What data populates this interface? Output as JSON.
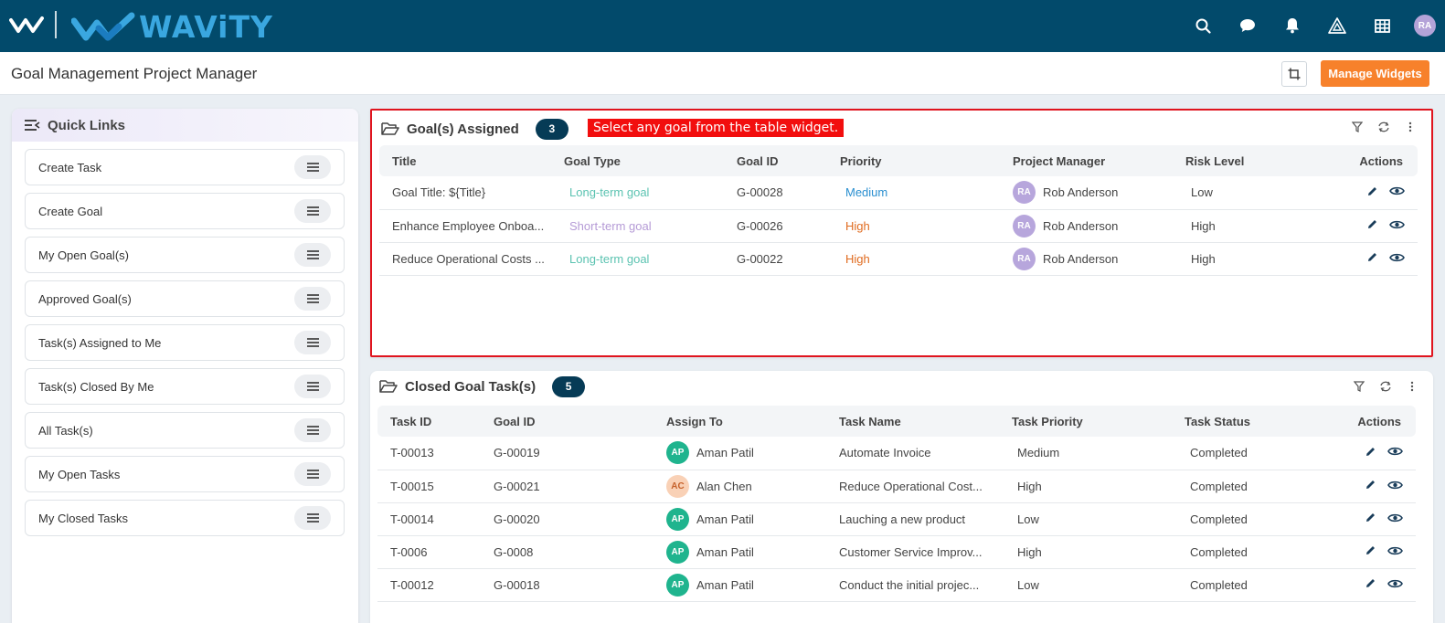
{
  "brand": {
    "name": "WAViTY"
  },
  "page": {
    "title": "Goal Management Project Manager",
    "manage_widgets": "Manage Widgets"
  },
  "user": {
    "initials": "RA"
  },
  "quick_links": {
    "title": "Quick Links",
    "items": [
      "Create Task",
      "Create Goal",
      "My Open Goal(s)",
      "Approved Goal(s)",
      "Task(s) Assigned to Me",
      "Task(s) Closed By Me",
      "All Task(s)",
      "My Open Tasks",
      "My Closed Tasks"
    ]
  },
  "goals_widget": {
    "title": "Goal(s) Assigned",
    "count": "3",
    "annotation": "Select any goal from the table widget.",
    "columns": [
      "Title",
      "Goal Type",
      "Goal ID",
      "Priority",
      "Project Manager",
      "Risk Level",
      "Actions"
    ],
    "rows": [
      {
        "title": "Goal Title: ${Title}",
        "type": "Long-term goal",
        "id": "G-00028",
        "priority": "Medium",
        "pm_initials": "RA",
        "pm": "Rob Anderson",
        "risk": "Low"
      },
      {
        "title": "Enhance Employee Onboa...",
        "type": "Short-term goal",
        "id": "G-00026",
        "priority": "High",
        "pm_initials": "RA",
        "pm": "Rob Anderson",
        "risk": "High"
      },
      {
        "title": "Reduce Operational Costs ...",
        "type": "Long-term goal",
        "id": "G-00022",
        "priority": "High",
        "pm_initials": "RA",
        "pm": "Rob Anderson",
        "risk": "High"
      }
    ]
  },
  "tasks_widget": {
    "title": "Closed Goal Task(s)",
    "count": "5",
    "columns": [
      "Task ID",
      "Goal ID",
      "Assign To",
      "Task Name",
      "Task Priority",
      "Task Status",
      "Actions"
    ],
    "rows": [
      {
        "task_id": "T-00013",
        "goal_id": "G-00019",
        "initials": "AP",
        "assignee": "Aman Patil",
        "name": "Automate Invoice",
        "priority": "Medium",
        "status": "Completed"
      },
      {
        "task_id": "T-00015",
        "goal_id": "G-00021",
        "initials": "AC",
        "assignee": "Alan Chen",
        "name": "Reduce Operational Cost...",
        "priority": "High",
        "status": "Completed"
      },
      {
        "task_id": "T-00014",
        "goal_id": "G-00020",
        "initials": "AP",
        "assignee": "Aman Patil",
        "name": "Lauching a new product",
        "priority": "Low",
        "status": "Completed"
      },
      {
        "task_id": "T-0006",
        "goal_id": "G-0008",
        "initials": "AP",
        "assignee": "Aman Patil",
        "name": "Customer Service Improv...",
        "priority": "High",
        "status": "Completed"
      },
      {
        "task_id": "T-00012",
        "goal_id": "G-00018",
        "initials": "AP",
        "assignee": "Aman Patil",
        "name": "Conduct the initial projec...",
        "priority": "Low",
        "status": "Completed"
      }
    ]
  },
  "colors": {
    "topbar": "#024a6b",
    "brand_blue": "#3aa7e0",
    "accent_orange": "#f7812b",
    "badge": "#063b56",
    "annotation_red": "#f20e0e"
  }
}
